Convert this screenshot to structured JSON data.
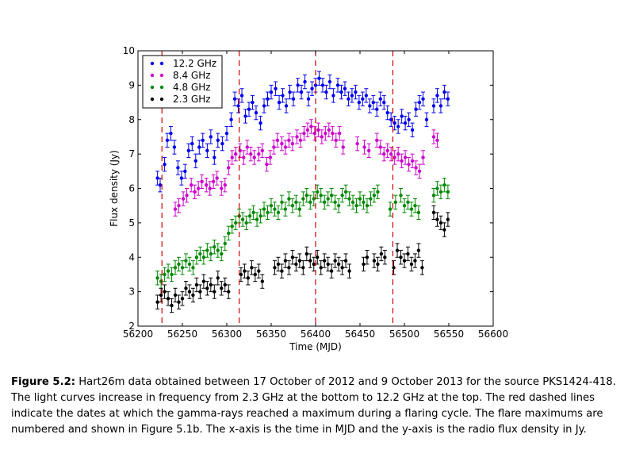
{
  "caption": {
    "label": "Figure 5.2:",
    "text": "Hart26m data obtained between 17 October of 2012 and 9 October 2013 for the source PKS1424-418. The light curves increase in frequency from 2.3 GHz at the bottom to 12.2 GHz at the top. The red dashed lines indicate the dates at which the gamma-rays reached a maximum during a flaring cycle. The flare maximums are numbered and shown in Figure 5.1b. The x-axis is the time in MJD and the y-axis is the radio flux density in Jy."
  },
  "chart_data": {
    "type": "scatter",
    "title": "",
    "xlabel": "Time (MJD)",
    "ylabel": "Flux density (Jy)",
    "xlim": [
      56200,
      56600
    ],
    "ylim": [
      2,
      10
    ],
    "xticks": [
      56200,
      56250,
      56300,
      56350,
      56400,
      56450,
      56500,
      56550,
      56600
    ],
    "yticks": [
      2,
      3,
      4,
      5,
      6,
      7,
      8,
      9,
      10
    ],
    "grid": false,
    "legend_position": "upper-left",
    "error_bars": true,
    "vlines": {
      "x": [
        56227,
        56314,
        56400,
        56487
      ],
      "color": "#cc0000",
      "style": "dashed"
    },
    "series": [
      {
        "name": "12.2 GHz",
        "color": "#0000ee",
        "x": [
          56222,
          56225,
          56230,
          56233,
          56237,
          56241,
          56245,
          56249,
          56253,
          56257,
          56261,
          56265,
          56269,
          56273,
          56278,
          56282,
          56286,
          56290,
          56295,
          56300,
          56305,
          56309,
          56313,
          56317,
          56321,
          56325,
          56329,
          56333,
          56338,
          56342,
          56346,
          56350,
          56355,
          56359,
          56363,
          56367,
          56371,
          56375,
          56380,
          56384,
          56388,
          56392,
          56396,
          56400,
          56404,
          56408,
          56412,
          56416,
          56420,
          56425,
          56429,
          56433,
          56437,
          56441,
          56445,
          56449,
          56453,
          56457,
          56461,
          56465,
          56469,
          56473,
          56477,
          56481,
          56485,
          56489,
          56493,
          56497,
          56501,
          56505,
          56509,
          56513,
          56517,
          56521,
          56525,
          56533,
          56537,
          56541,
          56545,
          56549
        ],
        "y": [
          6.3,
          6.1,
          6.7,
          7.4,
          7.6,
          7.2,
          6.6,
          6.3,
          6.5,
          7.1,
          7.3,
          6.8,
          7.2,
          7.4,
          7.1,
          7.5,
          6.9,
          7.4,
          7.3,
          7.6,
          8.0,
          8.6,
          8.4,
          8.7,
          8.1,
          8.3,
          8.5,
          8.2,
          7.9,
          8.4,
          8.6,
          8.8,
          8.9,
          8.5,
          8.7,
          8.4,
          8.8,
          8.6,
          9.0,
          8.8,
          9.1,
          8.6,
          8.9,
          9.0,
          9.2,
          9.0,
          8.8,
          9.1,
          8.7,
          9.0,
          8.8,
          8.9,
          8.6,
          8.7,
          8.8,
          8.5,
          8.6,
          8.7,
          8.4,
          8.5,
          8.3,
          8.6,
          8.5,
          8.2,
          8.0,
          7.9,
          7.8,
          8.1,
          7.9,
          8.0,
          7.7,
          8.3,
          8.5,
          8.6,
          8.0,
          8.4,
          8.7,
          8.4,
          8.8,
          8.6
        ]
      },
      {
        "name": "8.4 GHz",
        "color": "#cc00cc",
        "x": [
          56242,
          56246,
          56251,
          56255,
          56260,
          56264,
          56268,
          56272,
          56277,
          56281,
          56285,
          56289,
          56294,
          56298,
          56302,
          56306,
          56310,
          56315,
          56319,
          56323,
          56327,
          56331,
          56336,
          56340,
          56345,
          56349,
          56353,
          56357,
          56362,
          56366,
          56370,
          56374,
          56379,
          56383,
          56387,
          56391,
          56395,
          56399,
          56403,
          56407,
          56411,
          56415,
          56419,
          56423,
          56427,
          56431,
          56447,
          56455,
          56460,
          56469,
          56473,
          56477,
          56481,
          56485,
          56489,
          56493,
          56497,
          56501,
          56505,
          56509,
          56513,
          56517,
          56521,
          56533,
          56537
        ],
        "y": [
          5.4,
          5.5,
          5.7,
          5.8,
          6.1,
          5.9,
          6.0,
          6.2,
          6.1,
          6.0,
          6.2,
          6.3,
          6.0,
          6.1,
          6.6,
          6.9,
          7.0,
          7.1,
          6.9,
          7.2,
          7.0,
          6.9,
          7.0,
          7.1,
          6.7,
          6.9,
          7.2,
          7.4,
          7.3,
          7.2,
          7.4,
          7.3,
          7.5,
          7.4,
          7.6,
          7.7,
          7.8,
          7.6,
          7.7,
          7.5,
          7.6,
          7.7,
          7.6,
          7.4,
          7.6,
          7.2,
          7.3,
          7.2,
          7.1,
          7.4,
          7.2,
          7.0,
          7.1,
          7.0,
          6.9,
          7.0,
          6.8,
          6.9,
          6.7,
          6.8,
          6.6,
          6.5,
          6.9,
          7.5,
          7.4
        ]
      },
      {
        "name": "4.8 GHz",
        "color": "#008800",
        "x": [
          56222,
          56226,
          56230,
          56234,
          56238,
          56242,
          56246,
          56250,
          56254,
          56258,
          56262,
          56266,
          56270,
          56274,
          56278,
          56282,
          56286,
          56290,
          56294,
          56298,
          56302,
          56306,
          56310,
          56314,
          56318,
          56322,
          56326,
          56330,
          56334,
          56338,
          56342,
          56346,
          56350,
          56354,
          56358,
          56362,
          56366,
          56370,
          56374,
          56378,
          56382,
          56386,
          56390,
          56394,
          56398,
          56402,
          56406,
          56410,
          56414,
          56418,
          56422,
          56426,
          56430,
          56434,
          56438,
          56442,
          56446,
          56450,
          56454,
          56458,
          56462,
          56466,
          56470,
          56484,
          56490,
          56496,
          56500,
          56504,
          56508,
          56512,
          56516,
          56533,
          56537,
          56541,
          56545,
          56549
        ],
        "y": [
          3.4,
          3.3,
          3.5,
          3.6,
          3.5,
          3.7,
          3.8,
          3.7,
          3.9,
          3.8,
          3.7,
          4.0,
          4.1,
          4.0,
          4.2,
          4.1,
          4.3,
          4.2,
          4.1,
          4.4,
          4.7,
          4.9,
          5.0,
          5.2,
          5.1,
          5.0,
          5.2,
          5.3,
          5.1,
          5.2,
          5.4,
          5.3,
          5.5,
          5.4,
          5.3,
          5.6,
          5.4,
          5.7,
          5.5,
          5.6,
          5.4,
          5.7,
          5.8,
          5.6,
          5.7,
          5.9,
          5.8,
          5.6,
          5.7,
          5.8,
          5.6,
          5.5,
          5.8,
          5.9,
          5.7,
          5.6,
          5.5,
          5.7,
          5.6,
          5.5,
          5.7,
          5.8,
          5.9,
          5.4,
          5.6,
          5.8,
          5.5,
          5.6,
          5.4,
          5.5,
          5.3,
          5.8,
          6.0,
          5.9,
          6.1,
          5.9
        ]
      },
      {
        "name": "2.3 GHz",
        "color": "#000000",
        "x": [
          56222,
          56226,
          56230,
          56234,
          56238,
          56242,
          56246,
          56250,
          56254,
          56258,
          56262,
          56266,
          56270,
          56274,
          56278,
          56282,
          56286,
          56290,
          56294,
          56298,
          56302,
          56316,
          56320,
          56324,
          56328,
          56332,
          56336,
          56340,
          56354,
          56358,
          56362,
          56366,
          56370,
          56374,
          56378,
          56382,
          56386,
          56390,
          56394,
          56398,
          56402,
          56406,
          56410,
          56414,
          56418,
          56422,
          56426,
          56430,
          56434,
          56438,
          56454,
          56458,
          56466,
          56470,
          56474,
          56478,
          56488,
          56492,
          56496,
          56500,
          56504,
          56508,
          56512,
          56516,
          56520,
          56533,
          56537,
          56541,
          56545,
          56549
        ],
        "y": [
          2.7,
          2.9,
          3.0,
          2.8,
          2.6,
          2.9,
          2.7,
          2.8,
          3.1,
          3.0,
          2.9,
          3.2,
          3.0,
          3.3,
          3.1,
          3.2,
          3.0,
          3.4,
          3.1,
          3.2,
          3.0,
          3.5,
          3.6,
          3.4,
          3.7,
          3.5,
          3.6,
          3.3,
          3.7,
          3.8,
          3.6,
          3.9,
          3.7,
          4.0,
          3.8,
          3.9,
          3.7,
          4.1,
          3.9,
          3.8,
          4.0,
          3.7,
          3.9,
          3.8,
          3.6,
          3.9,
          3.8,
          3.7,
          3.9,
          3.6,
          3.8,
          4.0,
          3.9,
          3.8,
          4.1,
          4.0,
          3.7,
          4.2,
          4.0,
          3.9,
          4.1,
          3.8,
          3.9,
          4.2,
          3.7,
          5.3,
          5.1,
          5.0,
          4.8,
          5.1
        ]
      }
    ]
  }
}
